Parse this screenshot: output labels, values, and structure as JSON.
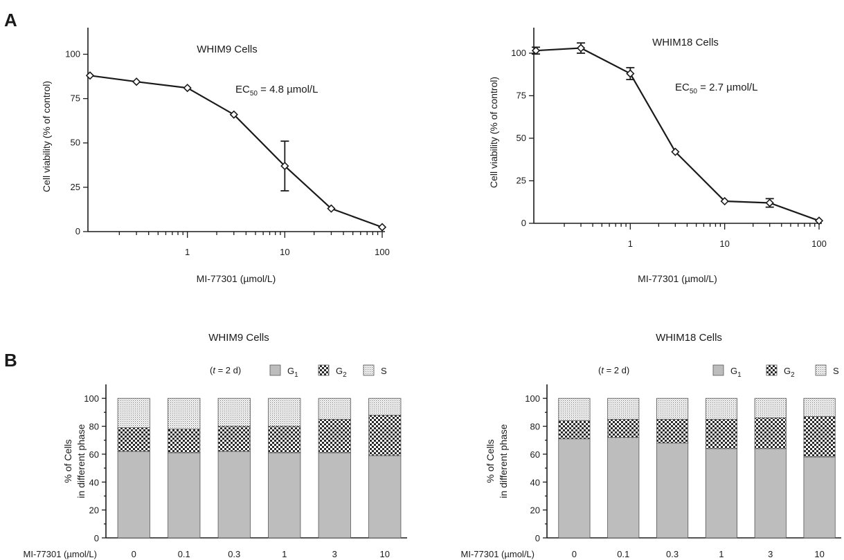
{
  "panel_labels": {
    "a": "A",
    "b": "B"
  },
  "colors": {
    "g1": "#bdbdbd",
    "ink": "#1a1a1a",
    "outline": "#555555"
  },
  "patterns": {
    "g1": "solid gray",
    "g2": "checkerboard",
    "s": "fine dots"
  },
  "chart_data": [
    {
      "type": "line",
      "title": "WHIM9 Cells",
      "annotation": {
        "prefix": "EC",
        "subscript": "50",
        "suffix": " = 4.8 µmol/L"
      },
      "xlabel": "MI-77301 (µmol/L)",
      "ylabel": "Cell viability (% of control)",
      "xscale": "log",
      "xlim": [
        0.1,
        100
      ],
      "ylim": [
        0,
        115
      ],
      "xticks": [
        1,
        10,
        100
      ],
      "xtick_labels": [
        "1",
        "10",
        "100"
      ],
      "yticks": [
        0,
        25,
        50,
        75,
        100
      ],
      "ytick_labels": [
        "0",
        "25",
        "50",
        "75",
        "100"
      ],
      "grid": false,
      "marker": "diamond",
      "series": [
        {
          "x": [
            0.1,
            0.3,
            1,
            3,
            10,
            30,
            100
          ],
          "y": [
            88,
            84.5,
            81,
            66,
            37,
            13,
            2.5
          ],
          "yerr": [
            0,
            0,
            0,
            0,
            14,
            0,
            0
          ]
        }
      ]
    },
    {
      "type": "line",
      "title": "WHIM18 Cells",
      "annotation": {
        "prefix": "EC",
        "subscript": "50",
        "suffix": " = 2.7 µmol/L"
      },
      "xlabel": "MI-77301 (µmol/L)",
      "ylabel": "Cell viability (% of control)",
      "xscale": "log",
      "xlim": [
        0.1,
        100
      ],
      "ylim": [
        0,
        115
      ],
      "xticks": [
        1,
        10,
        100
      ],
      "xtick_labels": [
        "1",
        "10",
        "100"
      ],
      "yticks": [
        0,
        25,
        50,
        75,
        100
      ],
      "ytick_labels": [
        "0",
        "25",
        "50",
        "75",
        "100"
      ],
      "grid": false,
      "marker": "diamond",
      "series": [
        {
          "x": [
            0.1,
            0.3,
            1,
            3,
            10,
            30,
            100
          ],
          "y": [
            101.5,
            103,
            88,
            42,
            13,
            12,
            1.5
          ],
          "yerr": [
            2,
            3,
            3.5,
            0,
            0,
            2.5,
            0
          ]
        }
      ]
    },
    {
      "type": "bar",
      "stacked": true,
      "title": "WHIM9 Cells",
      "condition_label": "(t = 2 d)",
      "xlabel": "MI-77301 (µmol/L)",
      "ylabel_lines": [
        "% of Cells",
        "in different phase"
      ],
      "categories": [
        "0",
        "0.1",
        "0.3",
        "1",
        "3",
        "10"
      ],
      "ylim": [
        0,
        110
      ],
      "yticks": [
        0,
        20,
        40,
        60,
        80,
        100
      ],
      "ytick_labels": [
        "0",
        "20",
        "40",
        "60",
        "80",
        "100"
      ],
      "legend": [
        {
          "main": "G",
          "sub": "1"
        },
        {
          "main": "G",
          "sub": "2"
        },
        {
          "main": "S",
          "sub": ""
        }
      ],
      "series": [
        {
          "values": [
            62,
            61,
            62,
            61,
            61,
            59
          ]
        },
        {
          "values": [
            17,
            17,
            18,
            19,
            24,
            29
          ]
        },
        {
          "values": [
            21,
            22,
            20,
            20,
            15,
            12
          ]
        }
      ]
    },
    {
      "type": "bar",
      "stacked": true,
      "title": "WHIM18 Cells",
      "condition_label": "(t = 2 d)",
      "xlabel": "MI-77301 (µmol/L)",
      "ylabel_lines": [
        "% of Cells",
        "in different phase"
      ],
      "categories": [
        "0",
        "0.1",
        "0.3",
        "1",
        "3",
        "10"
      ],
      "ylim": [
        0,
        110
      ],
      "yticks": [
        0,
        20,
        40,
        60,
        80,
        100
      ],
      "ytick_labels": [
        "0",
        "20",
        "40",
        "60",
        "80",
        "100"
      ],
      "legend": [
        {
          "main": "G",
          "sub": "1"
        },
        {
          "main": "G",
          "sub": "2"
        },
        {
          "main": "S",
          "sub": ""
        }
      ],
      "series": [
        {
          "values": [
            71,
            72,
            68,
            64,
            64,
            58
          ]
        },
        {
          "values": [
            13,
            13,
            17,
            21,
            22,
            29
          ]
        },
        {
          "values": [
            16,
            15,
            15,
            15,
            14,
            13
          ]
        }
      ]
    }
  ]
}
